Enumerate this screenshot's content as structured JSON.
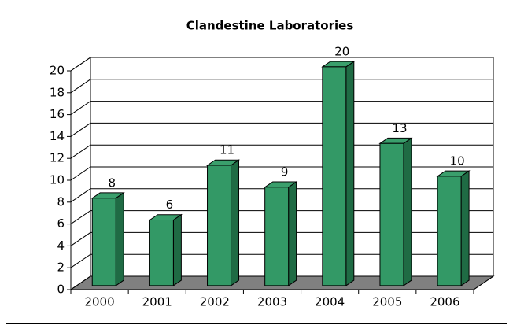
{
  "chart_data": {
    "type": "bar",
    "title": "Clandestine Laboratories",
    "categories": [
      "2000",
      "2001",
      "2002",
      "2003",
      "2004",
      "2005",
      "2006"
    ],
    "values": [
      8,
      6,
      11,
      9,
      20,
      13,
      10
    ],
    "color": "#339966",
    "ylim": [
      0,
      20
    ],
    "yticks": [
      0,
      2,
      4,
      6,
      8,
      10,
      12,
      14,
      16,
      18,
      20
    ],
    "grid": true
  }
}
